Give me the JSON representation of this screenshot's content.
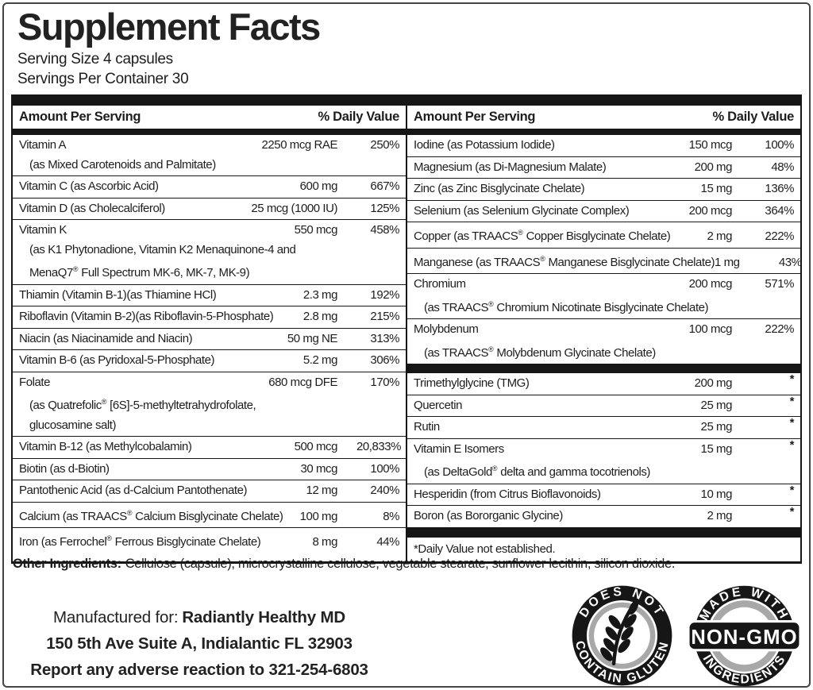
{
  "title": "Supplement Facts",
  "serving": {
    "size": "Serving Size 4 capsules",
    "per_container": "Servings Per Container 30"
  },
  "table": {
    "header": {
      "amount": "Amount Per Serving",
      "dv": "% Daily Value"
    },
    "left": {
      "rows": [
        {
          "name": "Vitamin A",
          "amount": "2250 mcg RAE",
          "dv": "250%",
          "sub": [
            "(as Mixed Carotenoids and Palmitate)"
          ]
        },
        {
          "name": "Vitamin C (as Ascorbic Acid)",
          "amount": "600 mg",
          "dv": "667%"
        },
        {
          "name": "Vitamin D (as Cholecalciferol)",
          "amount": "25 mcg (1000 IU)",
          "dv": "125%"
        },
        {
          "name": "Vitamin K",
          "amount": "550 mcg",
          "dv": "458%",
          "sub": [
            "(as K1 Phytonadione, Vitamin K2 Menaquinone-4 and",
            "MenaQ7® Full Spectrum MK-6, MK-7, MK-9)"
          ]
        },
        {
          "name": "Thiamin (Vitamin B-1)(as Thiamine HCl)",
          "amount": "2.3 mg",
          "dv": "192%"
        },
        {
          "name": "Riboflavin (Vitamin B-2)(as Riboflavin-5-Phosphate)",
          "amount": "2.8 mg",
          "dv": "215%"
        },
        {
          "name": "Niacin (as Niacinamide and Niacin)",
          "amount": "50 mg NE",
          "dv": "313%"
        },
        {
          "name": "Vitamin B-6 (as Pyridoxal-5-Phosphate)",
          "amount": "5.2 mg",
          "dv": "306%"
        },
        {
          "name": "Folate",
          "amount": "680 mcg DFE",
          "dv": "170%",
          "sub": [
            "(as Quatrefolic® [6S]-5-methyltetrahydrofolate,",
            "glucosamine salt)"
          ]
        },
        {
          "name": "Vitamin B-12 (as Methylcobalamin)",
          "amount": "500 mcg",
          "dv": "20,833%"
        },
        {
          "name": "Biotin (as d-Biotin)",
          "amount": "30 mcg",
          "dv": "100%"
        },
        {
          "name": "Pantothenic Acid (as d-Calcium Pantothenate)",
          "amount": "12 mg",
          "dv": "240%"
        },
        {
          "name": "Calcium (as TRAACS® Calcium Bisglycinate Chelate)",
          "amount": "100 mg",
          "dv": "8%"
        },
        {
          "name": "Iron (as Ferrochel® Ferrous Bisglycinate Chelate)",
          "amount": "8 mg",
          "dv": "44%"
        }
      ]
    },
    "right": {
      "minerals": [
        {
          "name": "Iodine (as Potassium Iodide)",
          "amount": "150 mcg",
          "dv": "100%"
        },
        {
          "name": "Magnesium (as Di-Magnesium Malate)",
          "amount": "200 mg",
          "dv": "48%"
        },
        {
          "name": "Zinc (as Zinc Bisglycinate Chelate)",
          "amount": "15 mg",
          "dv": "136%"
        },
        {
          "name": "Selenium (as Selenium Glycinate Complex)",
          "amount": "200 mcg",
          "dv": "364%"
        },
        {
          "name": "Copper (as TRAACS® Copper Bisglycinate Chelate)",
          "amount": "2 mg",
          "dv": "222%"
        },
        {
          "name": "Manganese (as TRAACS® Manganese Bisglycinate Chelate)",
          "amount": "1 mg",
          "dv": "43%"
        },
        {
          "name": "Chromium",
          "amount": "200 mcg",
          "dv": "571%",
          "sub": [
            "(as TRAACS® Chromium Nicotinate Bisglycinate Chelate)"
          ]
        },
        {
          "name": "Molybdenum",
          "amount": "100 mcg",
          "dv": "222%",
          "sub": [
            "(as TRAACS® Molybdenum Glycinate Chelate)"
          ]
        }
      ],
      "others": [
        {
          "name": "Trimethylglycine (TMG)",
          "amount": "200 mg",
          "dv": "*"
        },
        {
          "name": "Quercetin",
          "amount": "25 mg",
          "dv": "*"
        },
        {
          "name": "Rutin",
          "amount": "25 mg",
          "dv": "*"
        },
        {
          "name": "Vitamin E Isomers",
          "amount": "15 mg",
          "dv": "*",
          "sub": [
            "(as DeltaGold® delta and gamma tocotrienols)"
          ]
        },
        {
          "name": "Hesperidin (from Citrus Bioflavonoids)",
          "amount": "10 mg",
          "dv": "*"
        },
        {
          "name": "Boron (as Bororganic Glycine)",
          "amount": "2 mg",
          "dv": "*"
        }
      ],
      "footnote": "*Daily Value not established."
    }
  },
  "other_ingredients": {
    "label": "Other Ingredients:",
    "text": "Cellulose (capsule), microcrystalline cellulose, vegetable stearate, sunflower lecithin, silicon dioxide."
  },
  "manufacturer": {
    "line1_label": "Manufactured for:",
    "line1_name": "Radiantly Healthy MD",
    "line2": "150 5th Ave Suite A, Indialantic FL 32903",
    "line3": "Report any adverse reaction to 321-254-6803"
  },
  "badges": {
    "gluten": {
      "top": "DOES NOT",
      "bottom": "CONTAIN GLUTEN",
      "icon": "wheat-icon"
    },
    "non_gmo": {
      "top": "MADE WITH",
      "band": "NON-GMO",
      "bottom": "INGREDIENTS"
    }
  },
  "colors": {
    "ink": "#1d1d1d",
    "bar": "#161616",
    "badge_gray": "#a8a8a8"
  }
}
